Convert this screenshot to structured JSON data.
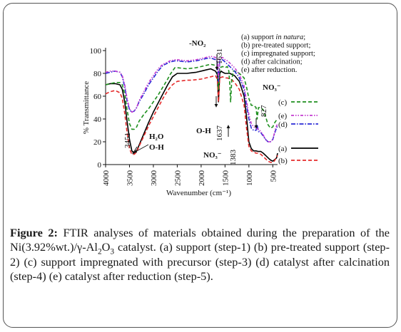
{
  "figure": {
    "label": "Figure 2:",
    "caption_parts": [
      {
        "t": " FTIR analyses of materials obtained during the preparation of the Ni(3.92%wt.)/γ-Al"
      },
      {
        "t": "2",
        "sub": true
      },
      {
        "t": "O"
      },
      {
        "t": "3",
        "sub": true
      },
      {
        "t": " catalyst. (a) support (step-1) (b) pre-treated support (step-2) (c) support impregnated with precursor (step-3) (d) catalyst after calcination (step-4) (e) catalyst after reduction (step-5)."
      }
    ]
  },
  "chart_data": {
    "type": "line",
    "xlabel": "Wavenumber (cm⁻¹)",
    "ylabel": "% Transmittance",
    "xlim": [
      4000,
      400
    ],
    "ylim": [
      0,
      100
    ],
    "x_reversed": true,
    "xticks": [
      4000,
      3500,
      3000,
      2500,
      2000,
      1500,
      1000,
      500
    ],
    "yticks": [
      0,
      20,
      40,
      60,
      80,
      100
    ],
    "grid": false,
    "legend": {
      "placement": "top-right",
      "entries": [
        {
          "prefix": "(a) support ",
          "italic": "in natura",
          "suffix": ";"
        },
        {
          "prefix": "(b) pre-treated support;",
          "italic": "",
          "suffix": ""
        },
        {
          "prefix": "(c) impregnated support;",
          "italic": "",
          "suffix": ""
        },
        {
          "prefix": "(d) after calcination;",
          "italic": "",
          "suffix": ""
        },
        {
          "prefix": "(e) after reduction.",
          "italic": "",
          "suffix": ""
        }
      ]
    },
    "series": [
      {
        "name": "(a)",
        "color": "#000000",
        "dash": "",
        "x": [
          4000,
          3950,
          3900,
          3800,
          3700,
          3650,
          3600,
          3550,
          3500,
          3450,
          3400,
          3350,
          3300,
          3200,
          3100,
          3000,
          2900,
          2800,
          2700,
          2600,
          2500,
          2400,
          2300,
          2200,
          2100,
          2000,
          1900,
          1800,
          1700,
          1660,
          1637,
          1610,
          1580,
          1550,
          1500,
          1450,
          1400,
          1350,
          1300,
          1200,
          1100,
          1050,
          1000,
          950,
          900,
          850,
          800,
          750,
          700,
          650,
          600,
          550,
          500,
          470,
          440,
          420,
          400
        ],
        "y": [
          70,
          70.5,
          71,
          71,
          70,
          66,
          55,
          38,
          22,
          12,
          10,
          12,
          17,
          27,
          37,
          46,
          54,
          62,
          70,
          77,
          80,
          80,
          80,
          80.5,
          81,
          82,
          83,
          84,
          82,
          79,
          55,
          80,
          82,
          81,
          80,
          80,
          80,
          79,
          78,
          73,
          60,
          42,
          20,
          14,
          12,
          12,
          11.5,
          11.5,
          10,
          8,
          6,
          4,
          3,
          4,
          5,
          6,
          10
        ]
      },
      {
        "name": "(b)",
        "color": "#e52b2b",
        "dash": "5,3",
        "x": [
          4000,
          3900,
          3800,
          3700,
          3650,
          3600,
          3550,
          3500,
          3450,
          3400,
          3350,
          3300,
          3200,
          3100,
          3000,
          2900,
          2800,
          2700,
          2600,
          2500,
          2400,
          2300,
          2200,
          2100,
          2000,
          1900,
          1800,
          1700,
          1660,
          1637,
          1610,
          1550,
          1500,
          1450,
          1400,
          1350,
          1300,
          1200,
          1100,
          1050,
          1000,
          950,
          900,
          850,
          800,
          750,
          700,
          650,
          600,
          550,
          500,
          470,
          440,
          400
        ],
        "y": [
          62,
          64,
          65,
          63,
          58,
          45,
          28,
          14,
          9,
          9,
          11,
          16,
          25,
          34,
          42,
          50,
          58,
          65,
          70,
          73,
          73.5,
          74,
          74,
          74.5,
          75,
          76,
          77,
          78,
          75,
          55,
          76,
          77,
          76,
          76,
          75,
          74,
          72,
          66,
          52,
          32,
          16,
          12,
          11,
          10,
          10,
          9,
          7,
          5,
          3,
          2,
          2,
          3,
          5,
          8
        ]
      },
      {
        "name": "(c)",
        "color": "#1e8f1e",
        "dash": "5,3",
        "x": [
          4000,
          3900,
          3800,
          3700,
          3650,
          3600,
          3550,
          3500,
          3450,
          3400,
          3350,
          3300,
          3200,
          3100,
          3000,
          2900,
          2800,
          2700,
          2650,
          2600,
          2550,
          2500,
          2400,
          2300,
          2200,
          2100,
          2000,
          1900,
          1800,
          1700,
          1660,
          1637,
          1610,
          1550,
          1500,
          1450,
          1420,
          1400,
          1383,
          1360,
          1330,
          1300,
          1200,
          1100,
          1050,
          1000,
          950,
          900,
          850,
          827,
          800,
          750,
          700,
          650,
          600,
          550,
          500,
          470,
          440,
          400
        ],
        "y": [
          70,
          71,
          72,
          72,
          70,
          62,
          48,
          36,
          31,
          31,
          33,
          38,
          44,
          49,
          55,
          61,
          68,
          75,
          79,
          82,
          85,
          85,
          84.5,
          84,
          84.5,
          85,
          86,
          87,
          88,
          87,
          85,
          66,
          85,
          86,
          85,
          86,
          82,
          70,
          55,
          73,
          82,
          82,
          80,
          76,
          68,
          58,
          52,
          52,
          50,
          40,
          50,
          50,
          48,
          42,
          35,
          32,
          33,
          36,
          38,
          40
        ]
      },
      {
        "name": "(d)",
        "color": "#2a2ad6",
        "dash": "6,2,1.5,2",
        "x": [
          4000,
          3900,
          3800,
          3700,
          3650,
          3600,
          3550,
          3500,
          3450,
          3400,
          3350,
          3300,
          3200,
          3100,
          3000,
          2900,
          2800,
          2700,
          2650,
          2600,
          2550,
          2500,
          2400,
          2300,
          2200,
          2100,
          2000,
          1900,
          1800,
          1700,
          1660,
          1637,
          1610,
          1550,
          1500,
          1450,
          1400,
          1350,
          1300,
          1200,
          1100,
          1050,
          1000,
          950,
          900,
          850,
          827,
          800,
          750,
          700,
          650,
          600,
          550,
          500,
          470,
          440,
          400
        ],
        "y": [
          80,
          81,
          82,
          81,
          77,
          68,
          56,
          48,
          46,
          47,
          50,
          55,
          62,
          70,
          76,
          82,
          87,
          89,
          90,
          90.5,
          91,
          91,
          90.5,
          90,
          90.5,
          91,
          92,
          93,
          93.5,
          92,
          90,
          73,
          91,
          92,
          90,
          88,
          86,
          84,
          82,
          76,
          66,
          52,
          40,
          32,
          30,
          30,
          35,
          29,
          28,
          25,
          22,
          20,
          20,
          22,
          26,
          30,
          34
        ]
      },
      {
        "name": "(e)",
        "color": "#c43bd0",
        "dash": "4,2,1.5,2,1.5,2",
        "x": [
          4000,
          3900,
          3800,
          3700,
          3650,
          3600,
          3550,
          3500,
          3450,
          3400,
          3350,
          3300,
          3200,
          3100,
          3000,
          2900,
          2800,
          2700,
          2650,
          2600,
          2550,
          2500,
          2400,
          2300,
          2200,
          2100,
          2000,
          1900,
          1800,
          1700,
          1660,
          1637,
          1610,
          1550,
          1500,
          1450,
          1400,
          1350,
          1300,
          1200,
          1100,
          1050,
          1000,
          950,
          900,
          850,
          800,
          750,
          700,
          650,
          600,
          550,
          500,
          470,
          440,
          400
        ],
        "y": [
          81,
          82,
          82,
          81,
          78,
          70,
          58,
          49,
          46,
          47,
          50,
          56,
          64,
          72,
          78,
          84,
          88,
          90,
          91,
          91.5,
          92,
          92,
          91.5,
          91,
          91.5,
          92,
          93,
          94,
          95,
          94,
          92,
          75,
          93,
          94,
          92,
          91,
          89,
          87,
          85,
          79,
          69,
          56,
          44,
          36,
          33,
          32,
          31,
          29,
          26,
          22,
          20,
          20,
          22,
          27,
          32,
          36
        ]
      }
    ],
    "series_labels": [
      "(c)",
      "(e)",
      "(d)",
      "(a)",
      "(b)"
    ],
    "annotations": {
      "no2": "-NO₂",
      "w1631": "1631",
      "no3_top": "NO₃⁻",
      "w827": "827",
      "w3451": "3451",
      "h2o": "H₂O",
      "oh1": "O-H",
      "oh2": "O-H",
      "w1637": "1637",
      "no3_bottom": "NO₃⁻",
      "w1383": "1383"
    }
  }
}
